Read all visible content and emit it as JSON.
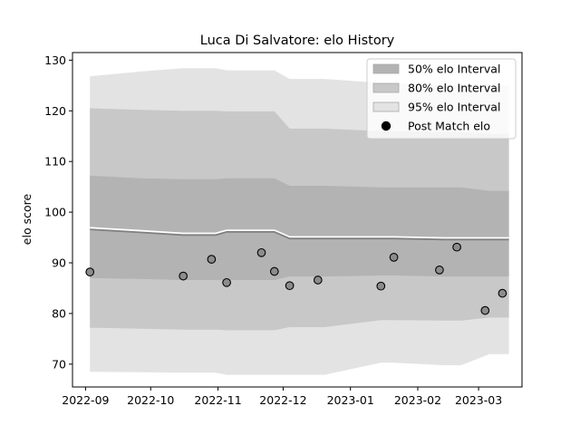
{
  "chart_data": {
    "type": "area",
    "title": "Luca Di Salvatore: elo History",
    "xlabel": "",
    "ylabel": "elo score",
    "xlim": [
      "2022-08-26",
      "2023-03-21"
    ],
    "ylim": [
      65.5,
      131.5
    ],
    "x_ticks": [
      "2022-09",
      "2022-10",
      "2022-11",
      "2022-12",
      "2023-01",
      "2023-02",
      "2023-03"
    ],
    "y_ticks": [
      70,
      80,
      90,
      100,
      110,
      120,
      130
    ],
    "grid": false,
    "legend": {
      "placement": "top-right",
      "entries": [
        "50% elo Interval",
        "80% elo Interval",
        "95% elo Interval",
        "Post Match elo"
      ]
    },
    "colors": {
      "band50": "#b3b3b3",
      "band80": "#c8c8c8",
      "band95": "#e3e3e3",
      "mean_line": "#808080",
      "points": "#8c8c8c"
    },
    "bands": {
      "x": [
        "2022-09-03",
        "2022-09-27",
        "2022-10-16",
        "2022-10-31",
        "2022-11-05",
        "2022-11-27",
        "2022-12-04",
        "2022-12-20",
        "2023-01-15",
        "2023-01-21",
        "2023-02-13",
        "2023-02-21",
        "2023-03-06",
        "2023-03-15"
      ],
      "mean": [
        96.6,
        96.0,
        95.5,
        95.5,
        96.1,
        96.1,
        94.8,
        94.8,
        94.8,
        94.8,
        94.6,
        94.6,
        94.6,
        94.6
      ],
      "band50_low": [
        87.0,
        86.8,
        86.6,
        86.6,
        86.6,
        86.6,
        87.3,
        87.3,
        87.5,
        87.5,
        87.3,
        87.3,
        87.3,
        87.3
      ],
      "band50_high": [
        107.2,
        106.7,
        106.5,
        106.5,
        106.7,
        106.7,
        105.2,
        105.2,
        104.9,
        104.9,
        104.9,
        104.9,
        104.2,
        104.2
      ],
      "band80_low": [
        77.2,
        77.0,
        76.8,
        76.8,
        76.7,
        76.7,
        77.3,
        77.3,
        78.7,
        78.7,
        78.6,
        78.6,
        79.2,
        79.2
      ],
      "band80_high": [
        120.5,
        120.2,
        120.0,
        120.0,
        119.9,
        119.9,
        116.5,
        116.5,
        116.0,
        116.0,
        115.8,
        115.8,
        115.5,
        115.5
      ],
      "band95_low": [
        68.5,
        68.4,
        68.3,
        68.3,
        67.9,
        67.9,
        67.9,
        67.9,
        70.3,
        70.3,
        69.8,
        69.8,
        72.0,
        72.0
      ],
      "band95_high": [
        126.8,
        127.8,
        128.4,
        128.4,
        128.0,
        128.0,
        126.3,
        126.3,
        125.5,
        125.5,
        125.0,
        125.0,
        125.0,
        125.0
      ]
    },
    "series": [
      {
        "name": "Post Match elo",
        "points": [
          {
            "x": "2022-09-03",
            "y": 88.2
          },
          {
            "x": "2022-10-16",
            "y": 87.4
          },
          {
            "x": "2022-10-29",
            "y": 90.7
          },
          {
            "x": "2022-11-05",
            "y": 86.1
          },
          {
            "x": "2022-11-21",
            "y": 92.0
          },
          {
            "x": "2022-11-27",
            "y": 88.3
          },
          {
            "x": "2022-12-04",
            "y": 85.5
          },
          {
            "x": "2022-12-17",
            "y": 86.6
          },
          {
            "x": "2023-01-15",
            "y": 85.4
          },
          {
            "x": "2023-01-21",
            "y": 91.1
          },
          {
            "x": "2023-02-11",
            "y": 88.6
          },
          {
            "x": "2023-02-19",
            "y": 93.1
          },
          {
            "x": "2023-03-04",
            "y": 80.6
          },
          {
            "x": "2023-03-12",
            "y": 84.0
          }
        ]
      }
    ]
  }
}
